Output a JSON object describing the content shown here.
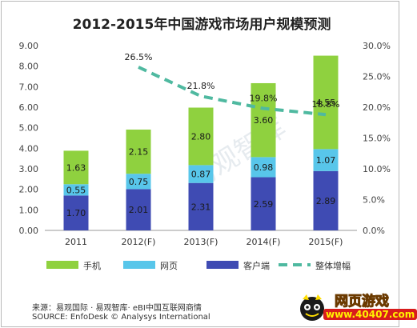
{
  "chart_data": {
    "type": "bar",
    "title": "2012-2015年中国游戏市场用户规模预测",
    "categories": [
      "2011",
      "2012(F)",
      "2013(F)",
      "2014(F)",
      "2015(F)"
    ],
    "series": [
      {
        "name": "客户端",
        "values": [
          1.7,
          2.01,
          2.31,
          2.59,
          2.89
        ],
        "labels": [
          "1.70",
          "2.01",
          "2.31",
          "2.59",
          "2.89"
        ],
        "color": "#3f4bb3"
      },
      {
        "name": "网页",
        "values": [
          0.55,
          0.75,
          0.87,
          0.98,
          1.07
        ],
        "labels": [
          "0.55",
          "0.75",
          "0.87",
          "0.98",
          "1.07"
        ],
        "color": "#58c6ea"
      },
      {
        "name": "手机",
        "values": [
          1.63,
          2.15,
          2.8,
          3.6,
          4.55
        ],
        "labels": [
          "1.63",
          "2.15",
          "2.80",
          "3.60",
          "4.55"
        ],
        "color": "#8fd13f"
      }
    ],
    "line_series": {
      "name": "整体增幅",
      "values": [
        26.5,
        21.8,
        19.8,
        18.8
      ],
      "labels": [
        "26.5%",
        "21.8%",
        "19.8%",
        "18.8%"
      ],
      "categories": [
        "2012(F)",
        "2013(F)",
        "2014(F)",
        "2015(F)"
      ],
      "color": "#4fb9a0",
      "style": "dashed"
    },
    "ylim": [
      0,
      9
    ],
    "yticks": [
      "0.00",
      "1.00",
      "2.00",
      "3.00",
      "4.00",
      "5.00",
      "6.00",
      "7.00",
      "8.00",
      "9.00"
    ],
    "y2lim": [
      0,
      30
    ],
    "y2ticks": [
      "0.0%",
      "5.0%",
      "10.0%",
      "15.0%",
      "20.0%",
      "25.0%",
      "30.0%"
    ],
    "stacked": true,
    "grid": false,
    "legend_position": "bottom",
    "watermark": "易观智库"
  },
  "source": {
    "cn": "来源：易观国际 · 易观智库· eBI中国互联网商情",
    "en": "SOURCE: EnfoDesk © Analysys International"
  },
  "badge": {
    "title": "网页游戏",
    "url": "www.40407.com"
  }
}
